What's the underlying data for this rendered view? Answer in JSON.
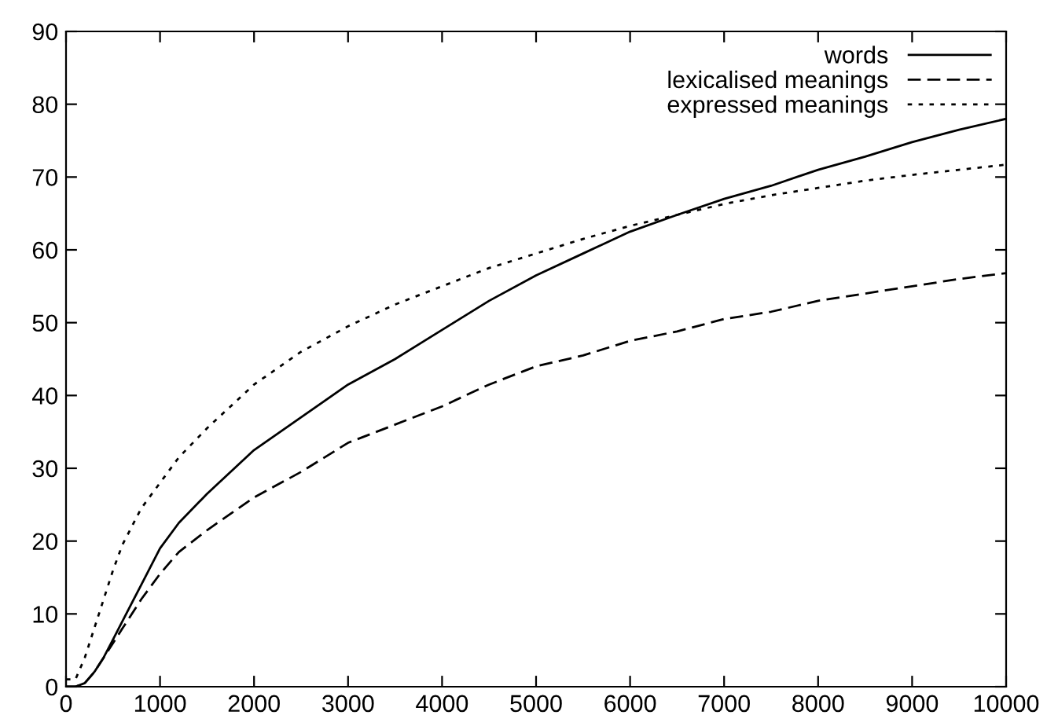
{
  "chart_data": {
    "type": "line",
    "xlim": [
      0,
      10000
    ],
    "ylim": [
      0,
      90
    ],
    "xticks": [
      0,
      1000,
      2000,
      3000,
      4000,
      5000,
      6000,
      7000,
      8000,
      9000,
      10000
    ],
    "yticks": [
      0,
      10,
      20,
      30,
      40,
      50,
      60,
      70,
      80,
      90
    ],
    "x": [
      0,
      100,
      200,
      300,
      400,
      500,
      600,
      800,
      1000,
      1200,
      1500,
      2000,
      2500,
      3000,
      3500,
      4000,
      4500,
      5000,
      5500,
      6000,
      6500,
      7000,
      7500,
      8000,
      8500,
      9000,
      9500,
      10000
    ],
    "legend": "top right",
    "grid": false,
    "series": [
      {
        "name": "words",
        "color": "#000000",
        "line_style": "solid",
        "values": [
          0,
          0,
          0.5,
          2,
          4,
          6.5,
          9,
          14,
          19,
          22.5,
          26.5,
          32.5,
          37,
          41.5,
          45,
          49,
          53,
          56.5,
          59.5,
          62.5,
          64.8,
          67,
          68.8,
          71,
          72.8,
          74.8,
          76.5,
          78
        ]
      },
      {
        "name": "lexicalised meanings",
        "color": "#000000",
        "line_style": "dashed",
        "values": [
          0,
          0,
          0.5,
          2,
          4,
          6,
          8,
          12,
          15.5,
          18.5,
          21.5,
          26,
          29.5,
          33.5,
          36,
          38.5,
          41.5,
          44,
          45.5,
          47.5,
          48.8,
          50.5,
          51.5,
          53,
          54,
          55,
          56,
          56.8
        ]
      },
      {
        "name": "expressed meanings",
        "color": "#000000",
        "line_style": "dotted",
        "values": [
          1,
          1,
          4,
          8,
          12,
          16,
          19.5,
          24.5,
          28,
          31.5,
          35.5,
          41.5,
          46,
          49.5,
          52.5,
          55,
          57.5,
          59.5,
          61.5,
          63.3,
          64.8,
          66.3,
          67.5,
          68.5,
          69.5,
          70.3,
          71,
          71.7
        ]
      }
    ]
  }
}
